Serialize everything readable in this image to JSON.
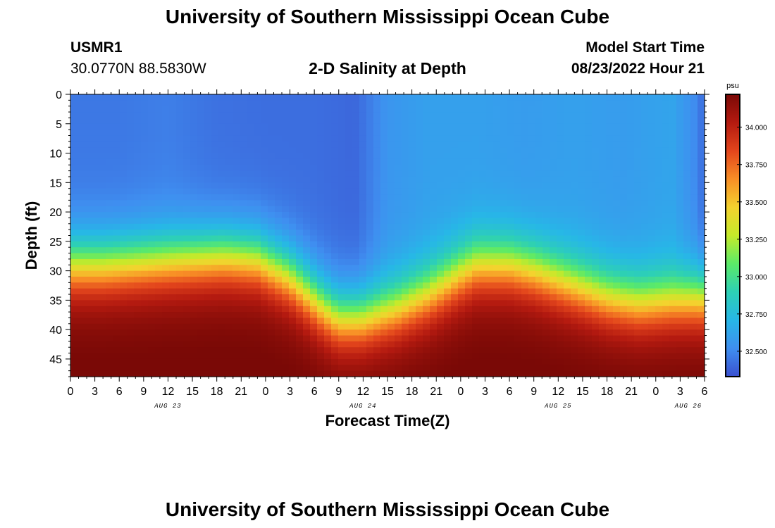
{
  "page": {
    "title": "University of Southern Mississippi Ocean Cube",
    "station": "USMR1",
    "coords": "30.0770N  88.5830W",
    "plot_title": "2-D Salinity at Depth",
    "model_start_label": "Model Start Time",
    "model_start_value": "08/23/2022 Hour 21",
    "footer_title": "University of Southern Mississippi Ocean Cube"
  },
  "chart_data": {
    "type": "heatmap",
    "title": "2-D Salinity at Depth",
    "xlabel": "Forecast Time(Z)",
    "ylabel": "Depth (ft)",
    "y_ticks": [
      0,
      5,
      10,
      15,
      20,
      25,
      30,
      35,
      40,
      45
    ],
    "ylim": [
      0,
      48
    ],
    "x_ticks": [
      "0",
      "3",
      "6",
      "9",
      "12",
      "15",
      "18",
      "21",
      "0",
      "3",
      "6",
      "9",
      "12",
      "15",
      "18",
      "21",
      "0",
      "3",
      "6",
      "9",
      "12",
      "15",
      "18",
      "21",
      "0",
      "3",
      "6"
    ],
    "xlim_hours": [
      0,
      78
    ],
    "day_labels": [
      {
        "label": "AUG 23",
        "hour": 12
      },
      {
        "label": "AUG 24",
        "hour": 36
      },
      {
        "label": "AUG 25",
        "hour": 60
      },
      {
        "label": "AUG 26",
        "hour": 76
      }
    ],
    "colorbar": {
      "unit": "psu",
      "min": 32.33,
      "max": 34.22,
      "ticks": [
        "34.000",
        "33.750",
        "33.500",
        "33.250",
        "33.000",
        "32.750",
        "32.500"
      ],
      "tick_values": [
        34.0,
        33.75,
        33.5,
        33.25,
        33.0,
        32.75,
        32.5
      ],
      "colors": [
        "#3a50d0",
        "#3f8ff0",
        "#27b7e7",
        "#2dd0b5",
        "#5bea68",
        "#c5ea2a",
        "#f4d22e",
        "#f88e26",
        "#e3451c",
        "#b41a10",
        "#7a0906"
      ]
    },
    "halocline_depth_ft": {
      "hours": [
        0,
        4,
        9,
        14,
        19,
        23,
        27,
        31,
        33,
        36,
        40,
        44,
        48,
        50,
        54,
        57,
        61,
        66,
        70,
        74,
        78
      ],
      "depth": [
        29,
        29,
        28.5,
        28,
        27.5,
        28,
        31,
        36,
        38,
        38,
        36.5,
        34,
        30.5,
        29,
        29,
        30,
        32,
        34.5,
        35.5,
        35,
        34.5
      ]
    },
    "surface_salinity_psu": {
      "hours": [
        0,
        6,
        12,
        18,
        24,
        30,
        35,
        39,
        44,
        50,
        56,
        62,
        68,
        74,
        77,
        78
      ],
      "values": [
        32.45,
        32.45,
        32.47,
        32.43,
        32.42,
        32.42,
        32.4,
        32.55,
        32.6,
        32.6,
        32.58,
        32.6,
        32.58,
        32.62,
        32.5,
        32.4
      ]
    },
    "bottom_salinity_psu": 34.2
  }
}
